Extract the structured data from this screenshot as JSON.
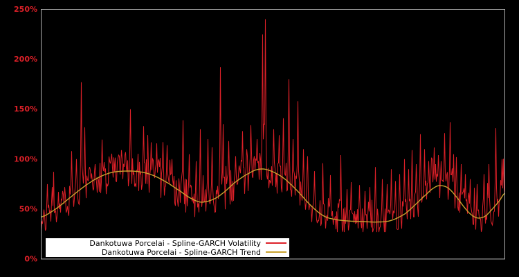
{
  "figure": {
    "background": "#000000",
    "plot_border_color": "#b0b0b0",
    "legend_background": "#ffffff",
    "legend_text_color": "#000000"
  },
  "axis": {
    "tick_color": "#dd2028"
  },
  "chart_data": {
    "type": "line",
    "title": "",
    "xlabel": "",
    "ylabel": "",
    "ylim": [
      0,
      250
    ],
    "grid": false,
    "legend_position": "bottom-left-inside",
    "x_tick_labels": [],
    "y_ticks": [
      {
        "value": 0,
        "label": "0%"
      },
      {
        "value": 50,
        "label": "50%"
      },
      {
        "value": 100,
        "label": "100%"
      },
      {
        "value": 150,
        "label": "150%"
      },
      {
        "value": 200,
        "label": "200%"
      },
      {
        "value": 250,
        "label": "250%"
      }
    ],
    "series": [
      {
        "name": "Dankotuwa Porcelai - Spline-GARCH Volatility",
        "color": "#dd2028",
        "style": "noisy-line",
        "unit": "percent",
        "noise": {
          "seed": 42,
          "min": 27,
          "max": 245,
          "start": 29,
          "base_spread": 18,
          "spread_scale": 0.26,
          "burst_chance": 0.1,
          "burst_scale": 0.9
        },
        "spikes": [
          [
            0.013,
            75
          ],
          [
            0.024,
            72
          ],
          [
            0.046,
            68
          ],
          [
            0.066,
            108
          ],
          [
            0.076,
            100
          ],
          [
            0.086,
            177
          ],
          [
            0.094,
            132
          ],
          [
            0.116,
            95
          ],
          [
            0.136,
            97
          ],
          [
            0.151,
            100
          ],
          [
            0.173,
            109
          ],
          [
            0.182,
            107
          ],
          [
            0.192,
            150
          ],
          [
            0.221,
            133
          ],
          [
            0.237,
            105
          ],
          [
            0.252,
            98
          ],
          [
            0.262,
            117
          ],
          [
            0.271,
            114
          ],
          [
            0.282,
            100
          ],
          [
            0.306,
            139
          ],
          [
            0.319,
            105
          ],
          [
            0.334,
            98
          ],
          [
            0.344,
            130
          ],
          [
            0.359,
            120
          ],
          [
            0.368,
            112
          ],
          [
            0.386,
            192
          ],
          [
            0.393,
            135
          ],
          [
            0.404,
            118
          ],
          [
            0.419,
            103
          ],
          [
            0.434,
            128
          ],
          [
            0.443,
            110
          ],
          [
            0.452,
            134
          ],
          [
            0.465,
            120
          ],
          [
            0.477,
            225
          ],
          [
            0.483,
            240
          ],
          [
            0.501,
            130
          ],
          [
            0.513,
            124
          ],
          [
            0.523,
            141
          ],
          [
            0.534,
            180
          ],
          [
            0.544,
            120
          ],
          [
            0.553,
            158
          ],
          [
            0.565,
            110
          ],
          [
            0.575,
            103
          ],
          [
            0.59,
            88
          ],
          [
            0.608,
            96
          ],
          [
            0.624,
            84
          ],
          [
            0.647,
            104
          ],
          [
            0.659,
            70
          ],
          [
            0.669,
            77
          ],
          [
            0.687,
            74
          ],
          [
            0.699,
            68
          ],
          [
            0.709,
            72
          ],
          [
            0.721,
            92
          ],
          [
            0.736,
            80
          ],
          [
            0.747,
            75
          ],
          [
            0.755,
            90
          ],
          [
            0.764,
            78
          ],
          [
            0.773,
            85
          ],
          [
            0.784,
            100
          ],
          [
            0.793,
            90
          ],
          [
            0.8,
            109
          ],
          [
            0.809,
            95
          ],
          [
            0.818,
            125
          ],
          [
            0.827,
            110
          ],
          [
            0.836,
            98
          ],
          [
            0.844,
            100
          ],
          [
            0.851,
            95
          ],
          [
            0.857,
            104
          ],
          [
            0.863,
            98
          ],
          [
            0.87,
            126
          ],
          [
            0.882,
            137
          ],
          [
            0.89,
            105
          ],
          [
            0.896,
            102
          ],
          [
            0.906,
            95
          ],
          [
            0.915,
            85
          ],
          [
            0.926,
            80
          ],
          [
            0.94,
            75
          ],
          [
            0.955,
            85
          ],
          [
            0.966,
            95
          ],
          [
            0.981,
            131
          ],
          [
            0.994,
            100
          ]
        ]
      },
      {
        "name": "Dankotuwa Porcelai - Spline-GARCH Trend",
        "color": "#c9a22e",
        "style": "smooth-line",
        "unit": "percent",
        "points": [
          [
            0.0,
            42
          ],
          [
            0.031,
            50
          ],
          [
            0.061,
            61
          ],
          [
            0.091,
            72
          ],
          [
            0.121,
            81
          ],
          [
            0.151,
            86.5
          ],
          [
            0.18,
            88
          ],
          [
            0.21,
            87.5
          ],
          [
            0.24,
            84
          ],
          [
            0.27,
            77
          ],
          [
            0.3,
            68
          ],
          [
            0.322,
            61
          ],
          [
            0.344,
            57
          ],
          [
            0.367,
            59
          ],
          [
            0.389,
            65
          ],
          [
            0.419,
            77
          ],
          [
            0.449,
            86
          ],
          [
            0.471,
            90
          ],
          [
            0.493,
            88.5
          ],
          [
            0.523,
            81
          ],
          [
            0.553,
            68
          ],
          [
            0.583,
            53
          ],
          [
            0.61,
            43
          ],
          [
            0.635,
            39.5
          ],
          [
            0.665,
            38
          ],
          [
            0.694,
            37.5
          ],
          [
            0.724,
            37
          ],
          [
            0.754,
            38.5
          ],
          [
            0.784,
            45
          ],
          [
            0.806,
            54
          ],
          [
            0.829,
            64
          ],
          [
            0.848,
            71.5
          ],
          [
            0.861,
            73.5
          ],
          [
            0.878,
            71
          ],
          [
            0.896,
            62
          ],
          [
            0.914,
            51
          ],
          [
            0.93,
            43.5
          ],
          [
            0.943,
            41
          ],
          [
            0.958,
            43
          ],
          [
            0.973,
            50
          ],
          [
            0.988,
            58
          ],
          [
            1.0,
            66
          ]
        ]
      }
    ]
  }
}
